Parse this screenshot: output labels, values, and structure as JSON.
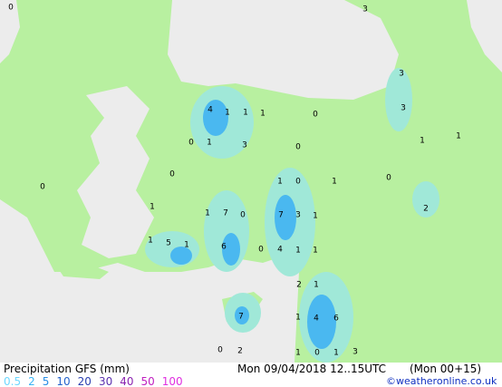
{
  "map": {
    "labels": [
      0,
      3,
      3,
      3,
      1,
      1,
      4,
      1,
      1,
      1,
      0,
      0,
      1,
      3,
      0,
      0,
      1,
      0,
      1,
      0,
      0,
      1,
      1,
      7,
      0,
      7,
      3,
      1,
      2,
      1,
      5,
      1,
      6,
      0,
      4,
      1,
      1,
      2,
      1,
      7,
      1,
      4,
      6,
      0,
      2,
      1,
      0,
      1,
      3
    ]
  },
  "footer": {
    "title": "Precipitation GFS (mm)",
    "time": "Mon 09/04/2018 12..15UTC",
    "run": "(Mon 00+15)",
    "legend": [
      {
        "value": 0.5,
        "color": "#6fd8ff"
      },
      {
        "value": 2,
        "color": "#39b4f5"
      },
      {
        "value": 5,
        "color": "#2a8fe6"
      },
      {
        "value": 10,
        "color": "#2463cc"
      },
      {
        "value": 20,
        "color": "#2a3fb0"
      },
      {
        "value": 30,
        "color": "#5a2fae"
      },
      {
        "value": 40,
        "color": "#8a22b0"
      },
      {
        "value": 50,
        "color": "#c01fc0"
      },
      {
        "value": 100,
        "color": "#e030e0"
      }
    ],
    "credit": "©weatheronline.co.uk"
  }
}
